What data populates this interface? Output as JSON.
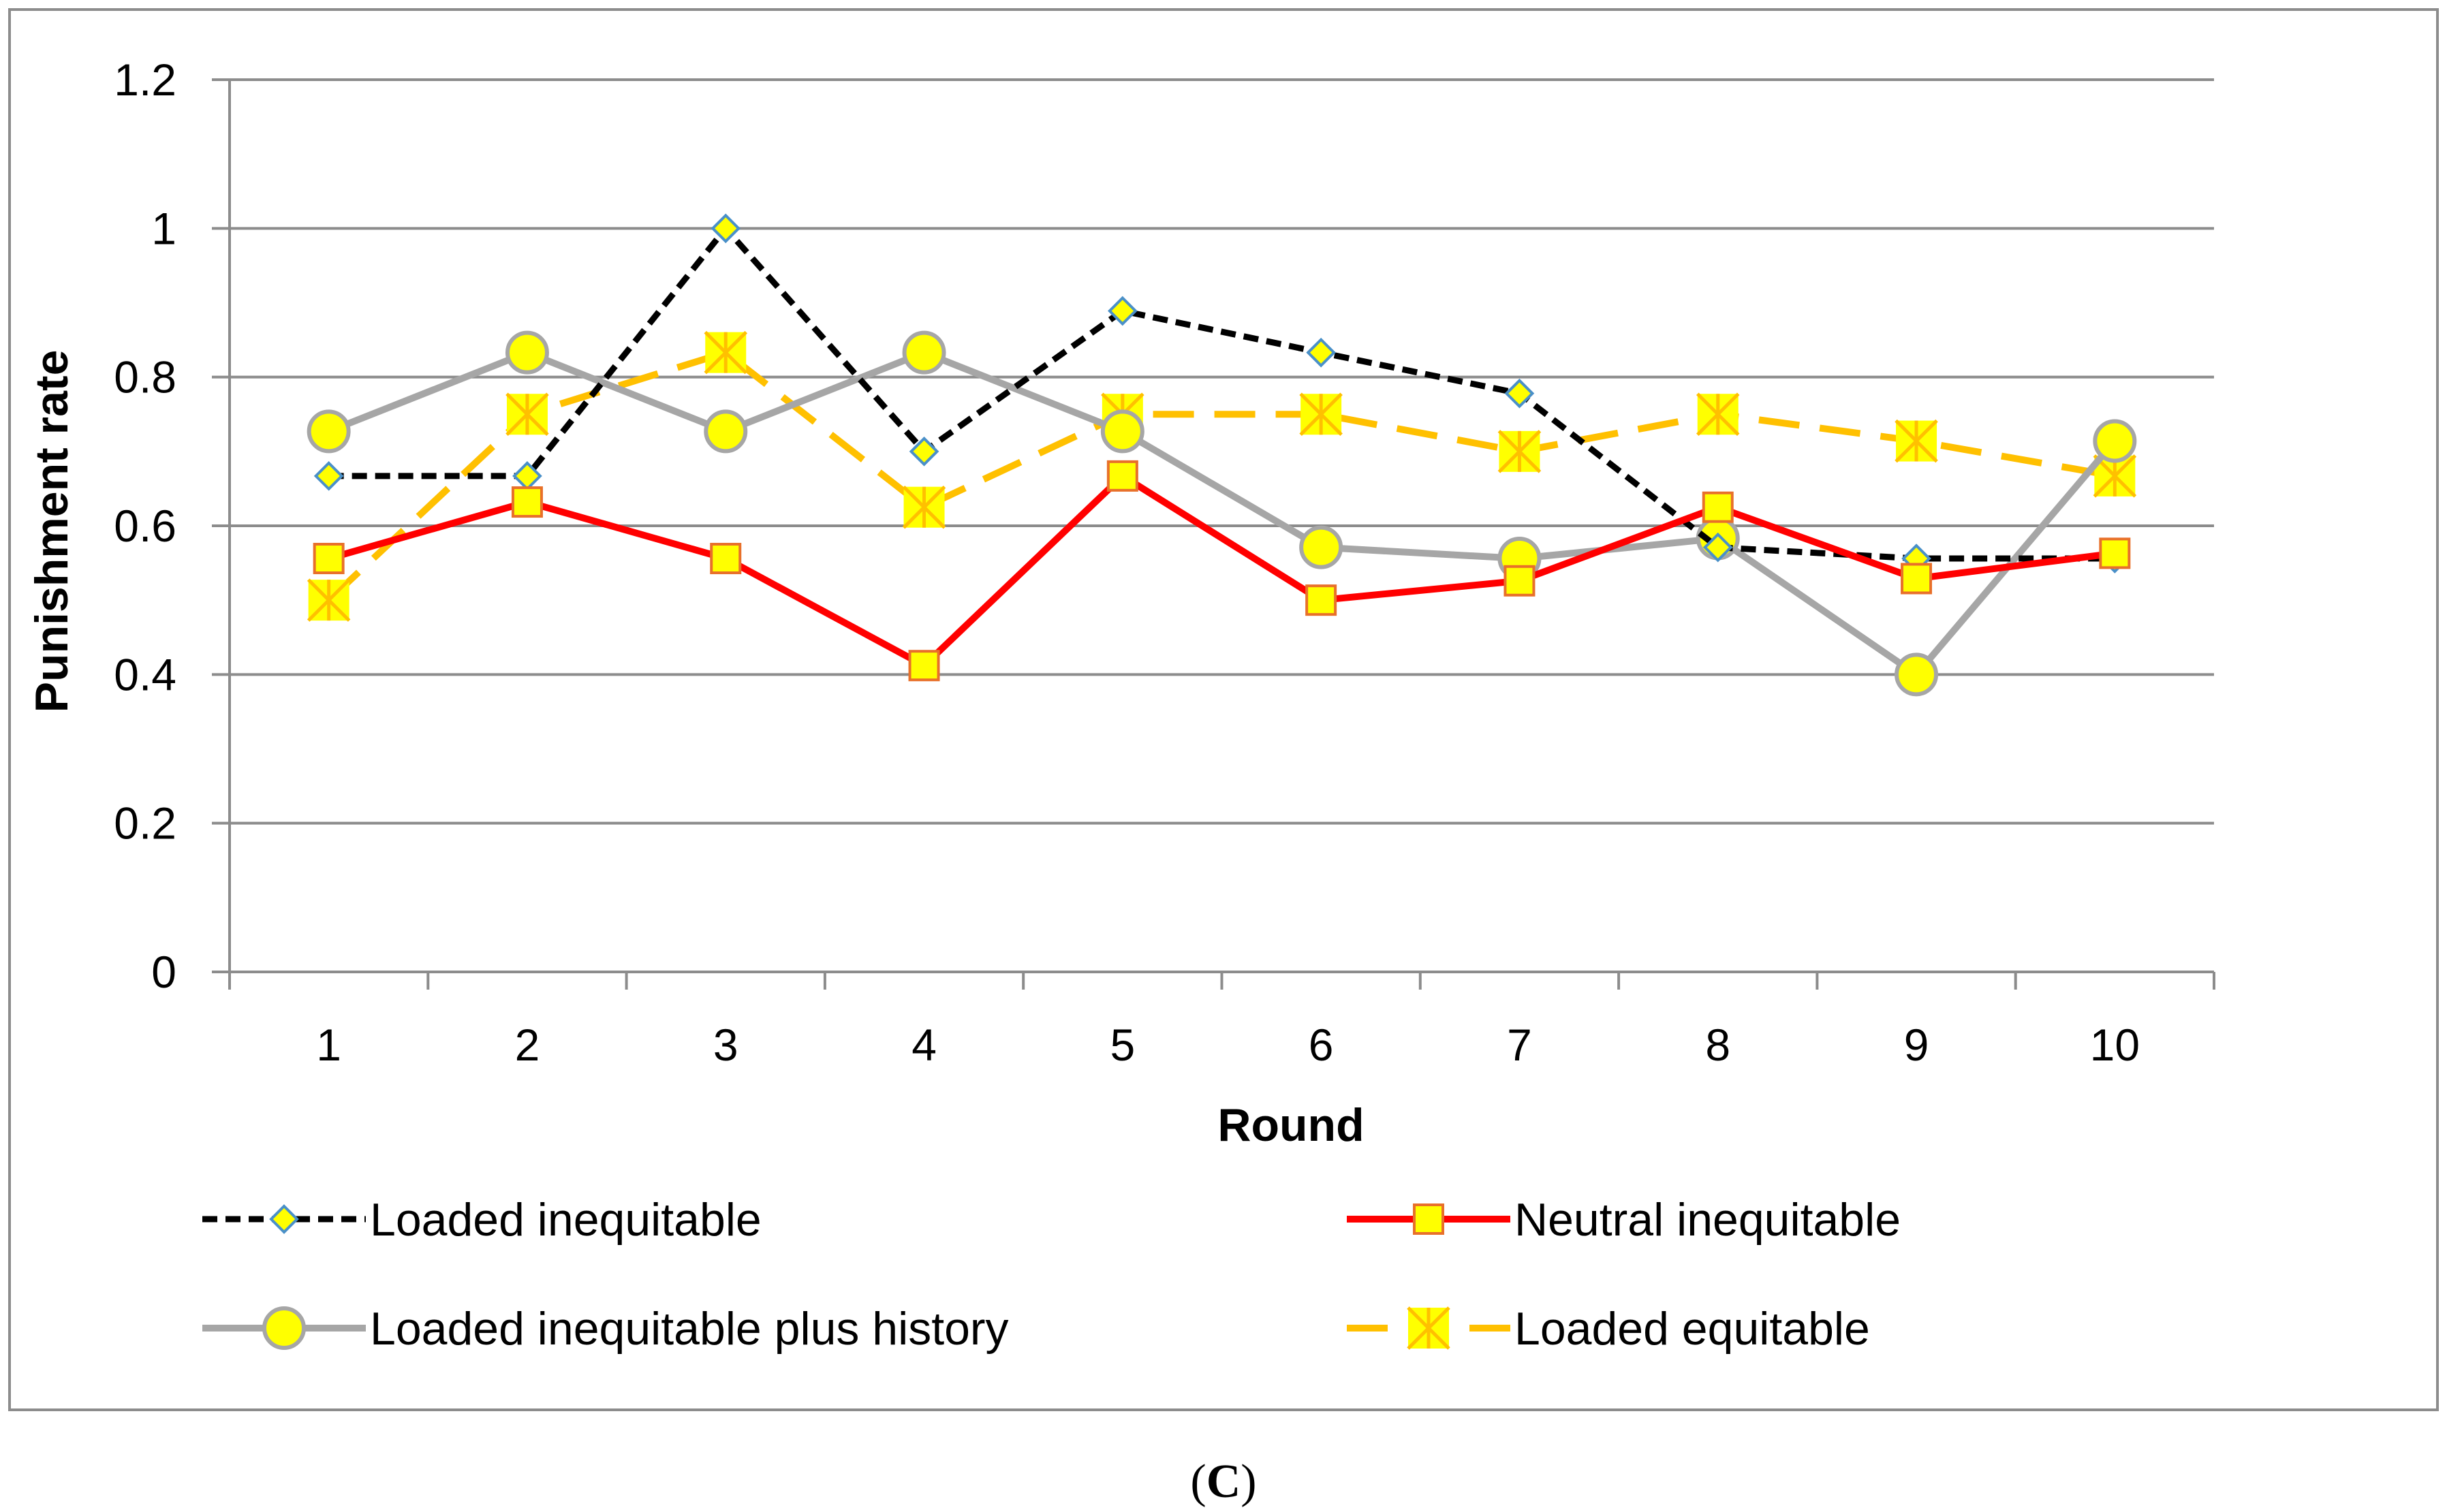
{
  "chart_data": {
    "type": "line",
    "title": "",
    "xlabel": "Round",
    "ylabel": "Punishment  rate",
    "caption_paren_open": "(",
    "caption_letter": "C",
    "caption_paren_close": ")",
    "categories": [
      "1",
      "2",
      "3",
      "4",
      "5",
      "6",
      "7",
      "8",
      "9",
      "10"
    ],
    "ylim": [
      0,
      1.2
    ],
    "yticks": [
      0,
      0.2,
      0.4,
      0.6,
      0.8,
      1,
      1.2
    ],
    "ytick_labels": [
      "0",
      "0.2",
      "0.4",
      "0.6",
      "0.8",
      "1",
      "1.2"
    ],
    "grid": true,
    "legend_position": "bottom",
    "series": [
      {
        "name": "Loaded inequitable",
        "values": [
          0.667,
          0.667,
          1.0,
          0.7,
          0.889,
          0.833,
          0.778,
          0.571,
          0.556,
          0.556
        ],
        "line_color": "#000000",
        "dash": "dashed",
        "marker": "diamond",
        "marker_fill": "#ffff00",
        "marker_stroke": "#4a90c8"
      },
      {
        "name": "Neutral inequitable",
        "values": [
          0.556,
          0.632,
          0.556,
          0.412,
          0.667,
          0.5,
          0.526,
          0.625,
          0.529,
          0.563
        ],
        "line_color": "#ff0000",
        "dash": "solid",
        "marker": "square",
        "marker_fill": "#ffff00",
        "marker_stroke": "#e8702a"
      },
      {
        "name": "Loaded inequitable plus history",
        "values": [
          0.727,
          0.833,
          0.727,
          0.833,
          0.727,
          0.571,
          0.556,
          0.583,
          0.4,
          0.714
        ],
        "line_color": "#a6a6a6",
        "dash": "solid",
        "marker": "circle",
        "marker_fill": "#ffff00",
        "marker_stroke": "#a6a6a6"
      },
      {
        "name": "Loaded equitable",
        "values": [
          0.5,
          0.75,
          0.833,
          0.625,
          0.75,
          0.75,
          0.7,
          0.75,
          0.714,
          0.667
        ],
        "line_color": "#ffc000",
        "dash": "longdash",
        "marker": "star",
        "marker_fill": "#ffff00",
        "marker_stroke": "#ffc000"
      }
    ]
  }
}
